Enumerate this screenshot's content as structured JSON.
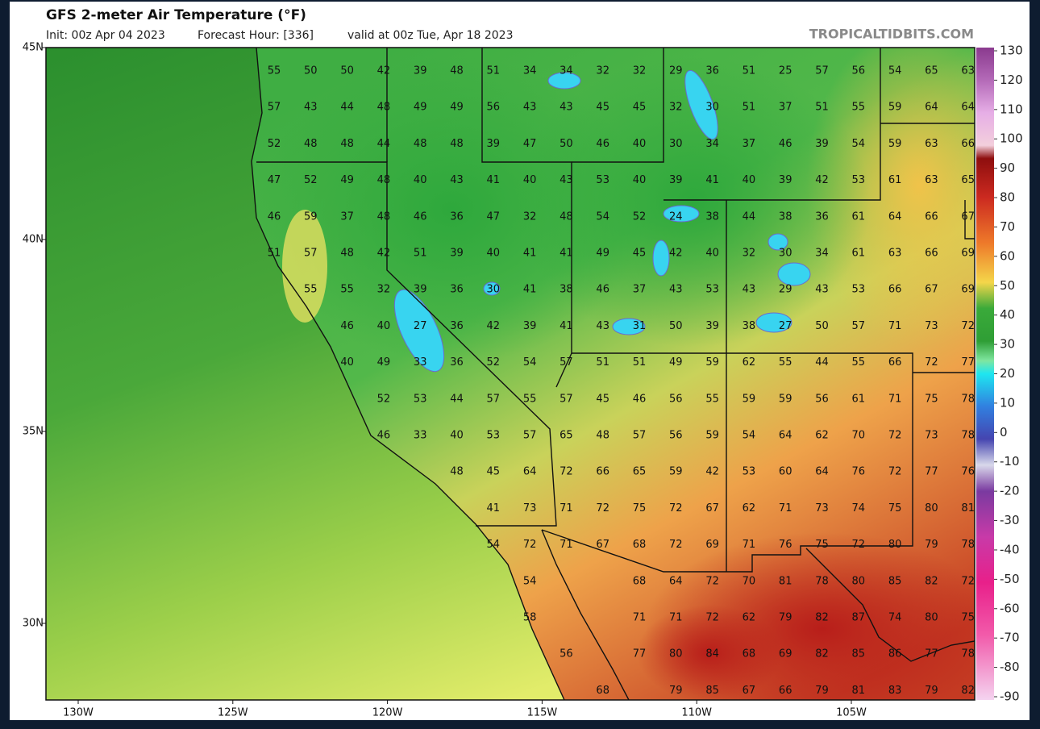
{
  "header": {
    "title": "GFS 2-meter Air Temperature (°F)",
    "init": "Init: 00z Apr 04 2023",
    "forecast_hour": "Forecast Hour: [336]",
    "valid": "valid at 00z Tue, Apr 18 2023",
    "watermark": "TROPICALTIDBITS.COM"
  },
  "map": {
    "lat_labels": [
      "45N",
      "40N",
      "35N",
      "30N"
    ],
    "lon_labels": [
      "130W",
      "125W",
      "120W",
      "115W",
      "110W",
      "105W"
    ],
    "station_rows": [
      [
        55,
        50,
        50,
        42,
        39,
        48,
        51,
        34,
        34,
        32,
        32,
        29,
        36,
        51,
        25,
        57,
        56,
        54,
        65,
        63
      ],
      [
        57,
        43,
        44,
        48,
        49,
        49,
        56,
        43,
        43,
        45,
        45,
        32,
        30,
        51,
        37,
        51,
        55,
        59,
        64,
        64
      ],
      [
        52,
        48,
        48,
        44,
        48,
        48,
        39,
        47,
        50,
        46,
        40,
        30,
        34,
        37,
        46,
        39,
        54,
        59,
        63,
        66
      ],
      [
        47,
        52,
        49,
        48,
        40,
        43,
        41,
        40,
        43,
        53,
        40,
        39,
        41,
        40,
        39,
        42,
        53,
        61,
        63,
        65
      ],
      [
        46,
        59,
        37,
        48,
        46,
        36,
        47,
        32,
        48,
        54,
        52,
        24,
        38,
        44,
        38,
        36,
        61,
        64,
        66,
        67
      ],
      [
        51,
        57,
        48,
        42,
        51,
        39,
        40,
        41,
        41,
        49,
        45,
        42,
        40,
        32,
        30,
        34,
        61,
        63,
        66,
        69
      ],
      [
        null,
        55,
        55,
        32,
        39,
        36,
        30,
        41,
        38,
        46,
        37,
        43,
        53,
        43,
        29,
        43,
        53,
        66,
        67,
        69
      ],
      [
        null,
        null,
        46,
        40,
        27,
        36,
        42,
        39,
        41,
        43,
        31,
        50,
        39,
        38,
        27,
        50,
        57,
        71,
        73,
        72
      ],
      [
        null,
        null,
        40,
        49,
        33,
        36,
        52,
        54,
        57,
        51,
        51,
        49,
        59,
        62,
        55,
        44,
        55,
        66,
        72,
        77
      ],
      [
        null,
        null,
        null,
        52,
        53,
        44,
        57,
        55,
        57,
        45,
        46,
        56,
        55,
        59,
        59,
        56,
        61,
        71,
        75,
        78
      ],
      [
        null,
        null,
        null,
        46,
        33,
        40,
        53,
        57,
        65,
        48,
        57,
        56,
        59,
        54,
        64,
        62,
        70,
        72,
        73,
        78
      ],
      [
        null,
        null,
        null,
        null,
        null,
        48,
        45,
        64,
        72,
        66,
        65,
        59,
        42,
        53,
        60,
        64,
        76,
        72,
        77,
        76
      ],
      [
        null,
        null,
        null,
        null,
        null,
        null,
        41,
        73,
        71,
        72,
        75,
        72,
        67,
        62,
        71,
        73,
        74,
        75,
        80,
        81
      ],
      [
        null,
        null,
        null,
        null,
        null,
        null,
        54,
        72,
        71,
        67,
        68,
        72,
        69,
        71,
        76,
        75,
        72,
        80,
        79,
        78
      ],
      [
        null,
        null,
        null,
        null,
        null,
        null,
        null,
        54,
        null,
        null,
        68,
        64,
        72,
        70,
        81,
        78,
        80,
        85,
        82,
        72
      ],
      [
        null,
        null,
        null,
        null,
        null,
        null,
        null,
        58,
        null,
        null,
        71,
        71,
        72,
        62,
        79,
        82,
        87,
        74,
        80,
        75
      ],
      [
        null,
        null,
        null,
        null,
        null,
        null,
        null,
        null,
        56,
        null,
        77,
        80,
        84,
        68,
        69,
        82,
        85,
        86,
        77,
        78
      ],
      [
        null,
        null,
        null,
        null,
        null,
        null,
        null,
        null,
        null,
        68,
        null,
        79,
        85,
        67,
        66,
        79,
        81,
        83,
        79,
        82
      ]
    ]
  },
  "colorbar": {
    "range": [
      -90,
      130
    ],
    "ticks": [
      130,
      120,
      110,
      100,
      90,
      80,
      70,
      60,
      50,
      40,
      30,
      20,
      10,
      0,
      -10,
      -20,
      -30,
      -40,
      -50,
      -60,
      -70,
      -80,
      -90
    ]
  }
}
